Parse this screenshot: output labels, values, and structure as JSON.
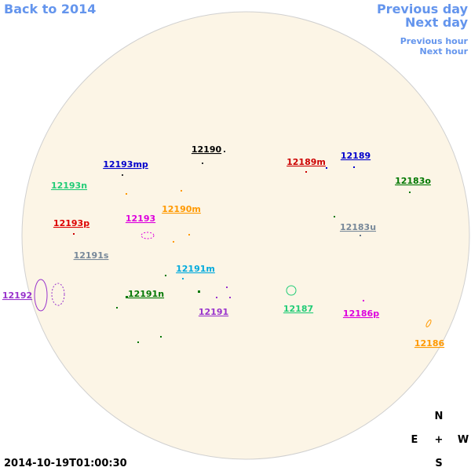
{
  "nav": {
    "back": "Back to 2014",
    "previous_day": "Previous day",
    "next_day": "Next day",
    "previous_hour": "Previous hour",
    "next_hour": "Next hour",
    "color": "#6495ed"
  },
  "timestamp": "2014-10-19T01:00:30",
  "compass": {
    "north": "N",
    "east": "E",
    "center": "+",
    "west": "W",
    "south": "S"
  },
  "regions": [
    {
      "label": "12190",
      "color": "#000000"
    },
    {
      "label": "12193mp",
      "color": "#0000cc"
    },
    {
      "label": "12189m",
      "color": "#cc0000"
    },
    {
      "label": "12189",
      "color": "#0000cc"
    },
    {
      "label": "12183o",
      "color": "#007700"
    },
    {
      "label": "12193n",
      "color": "#22cc77"
    },
    {
      "label": "12190m",
      "color": "#ff9900"
    },
    {
      "label": "12193",
      "color": "#dd00dd"
    },
    {
      "label": "12193p",
      "color": "#dd0000"
    },
    {
      "label": "12183u",
      "color": "#778899"
    },
    {
      "label": "12191s",
      "color": "#778899"
    },
    {
      "label": "12191m",
      "color": "#00aadd"
    },
    {
      "label": "12192",
      "color": "#9933cc"
    },
    {
      "label": "12191n",
      "color": "#007700"
    },
    {
      "label": "12187",
      "color": "#22cc77"
    },
    {
      "label": "12191",
      "color": "#9933cc"
    },
    {
      "label": "12186p",
      "color": "#dd00dd"
    },
    {
      "label": "12186",
      "color": "#ff9900"
    }
  ]
}
